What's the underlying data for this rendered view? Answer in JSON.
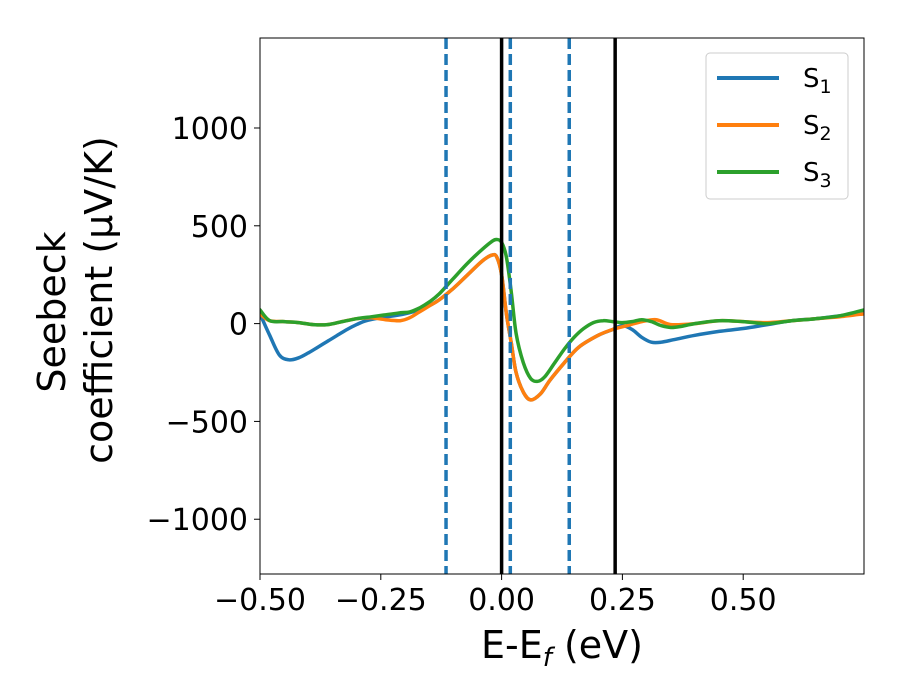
{
  "chart_data": {
    "type": "line",
    "xlabel": "E-E",
    "xlabel_subscript": "f",
    "xlabel_unit": " (eV)",
    "ylabel_line1": "Seebeck",
    "ylabel_line2": "coefficient  (μV/K)",
    "xlim": [
      -0.5,
      0.75
    ],
    "ylim": [
      -1280,
      1460
    ],
    "xticks": [
      -0.5,
      -0.25,
      0.0,
      0.25,
      0.5
    ],
    "xtick_labels": [
      "−0.50",
      "−0.25",
      "0.00",
      "0.25",
      "0.50"
    ],
    "yticks": [
      -1000,
      -500,
      0,
      500,
      1000
    ],
    "ytick_labels": [
      "−1000",
      "−500",
      "0",
      "500",
      "1000"
    ],
    "grid": false,
    "legend_position": "top-right",
    "vlines": [
      {
        "x": -0.115,
        "color": "#1f77b4",
        "style": "dashed"
      },
      {
        "x": 0.0,
        "color": "#000000",
        "style": "solid"
      },
      {
        "x": 0.018,
        "color": "#1f77b4",
        "style": "dashed"
      },
      {
        "x": 0.14,
        "color": "#1f77b4",
        "style": "dashed"
      },
      {
        "x": 0.235,
        "color": "#000000",
        "style": "solid"
      }
    ],
    "series": [
      {
        "name": "S",
        "subscript": "1",
        "color": "#1f77b4",
        "x": [
          -0.5,
          -0.48,
          -0.46,
          -0.44,
          -0.42,
          -0.4,
          -0.38,
          -0.36,
          -0.34,
          -0.32,
          -0.3,
          -0.28,
          -0.25,
          -0.2,
          -0.16,
          -0.13,
          -0.1,
          -0.07,
          -0.04,
          -0.02,
          -0.01,
          0.0,
          0.01,
          0.02,
          0.03,
          0.045,
          0.06,
          0.08,
          0.1,
          0.13,
          0.16,
          0.2,
          0.23,
          0.25,
          0.27,
          0.29,
          0.31,
          0.33,
          0.36,
          0.4,
          0.45,
          0.5,
          0.55,
          0.6,
          0.65,
          0.7,
          0.75
        ],
        "values": [
          50,
          -60,
          -160,
          -185,
          -175,
          -150,
          -120,
          -90,
          -60,
          -30,
          -5,
          15,
          30,
          50,
          80,
          120,
          180,
          250,
          320,
          350,
          340,
          250,
          50,
          -100,
          -250,
          -350,
          -390,
          -360,
          -290,
          -200,
          -120,
          -60,
          -30,
          -10,
          -30,
          -70,
          -95,
          -95,
          -80,
          -60,
          -40,
          -25,
          -5,
          15,
          25,
          40,
          55
        ]
      },
      {
        "name": "S",
        "subscript": "2",
        "color": "#ff7f0e",
        "x": [
          -0.5,
          -0.48,
          -0.45,
          -0.42,
          -0.39,
          -0.36,
          -0.33,
          -0.3,
          -0.27,
          -0.24,
          -0.21,
          -0.19,
          -0.17,
          -0.15,
          -0.13,
          -0.1,
          -0.07,
          -0.04,
          -0.02,
          -0.01,
          0.0,
          0.01,
          0.02,
          0.03,
          0.045,
          0.06,
          0.08,
          0.1,
          0.13,
          0.16,
          0.2,
          0.23,
          0.26,
          0.29,
          0.32,
          0.35,
          0.4,
          0.45,
          0.5,
          0.55,
          0.6,
          0.65,
          0.7,
          0.75
        ],
        "values": [
          50,
          15,
          10,
          5,
          -5,
          -5,
          10,
          25,
          30,
          20,
          15,
          30,
          60,
          90,
          120,
          180,
          250,
          320,
          350,
          340,
          250,
          50,
          -100,
          -250,
          -350,
          -390,
          -360,
          -290,
          -200,
          -120,
          -60,
          -30,
          -10,
          10,
          20,
          -5,
          0,
          15,
          10,
          5,
          15,
          25,
          35,
          50
        ]
      },
      {
        "name": "S",
        "subscript": "3",
        "color": "#2ca02c",
        "x": [
          -0.5,
          -0.48,
          -0.45,
          -0.42,
          -0.39,
          -0.36,
          -0.33,
          -0.3,
          -0.27,
          -0.24,
          -0.21,
          -0.19,
          -0.17,
          -0.15,
          -0.13,
          -0.1,
          -0.07,
          -0.04,
          -0.02,
          -0.01,
          0.0,
          0.01,
          0.02,
          0.03,
          0.045,
          0.06,
          0.075,
          0.09,
          0.11,
          0.13,
          0.15,
          0.17,
          0.19,
          0.21,
          0.23,
          0.25,
          0.27,
          0.29,
          0.31,
          0.33,
          0.35,
          0.37,
          0.4,
          0.45,
          0.5,
          0.55,
          0.6,
          0.65,
          0.7,
          0.75
        ],
        "values": [
          70,
          15,
          10,
          5,
          -5,
          -5,
          10,
          25,
          35,
          45,
          55,
          60,
          80,
          110,
          150,
          230,
          310,
          380,
          420,
          430,
          415,
          340,
          160,
          -50,
          -200,
          -280,
          -295,
          -270,
          -200,
          -130,
          -70,
          -25,
          5,
          15,
          10,
          5,
          10,
          20,
          10,
          -10,
          -20,
          -15,
          0,
          15,
          10,
          0,
          15,
          25,
          40,
          70
        ]
      }
    ]
  }
}
